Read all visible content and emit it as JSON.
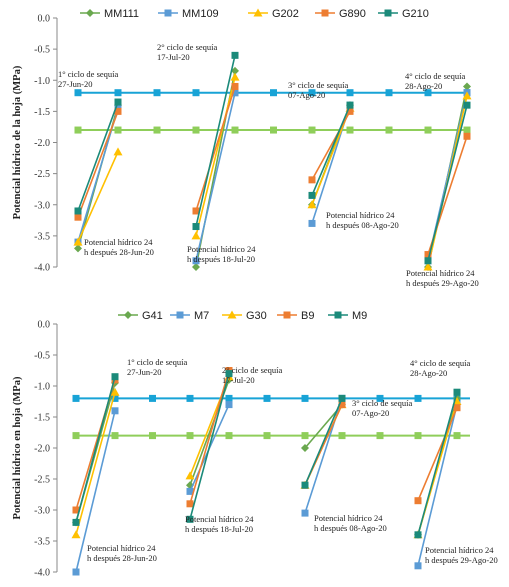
{
  "chart_data": [
    {
      "type": "line",
      "ylabel": "Potencial hídrico de la hoja (MPa)",
      "ylim": [
        -4.0,
        0.0
      ],
      "yticks": [
        "0.0",
        "-0.5",
        "-1.0",
        "-1.5",
        "-2.0",
        "-2.5",
        "-3.0",
        "-3.5",
        "-4.0"
      ],
      "grid": false,
      "legend": "top",
      "series": [
        {
          "name": "MM111",
          "color": "#6aa84f",
          "marker": "diamond",
          "segments": [
            [
              -3.7,
              -1.4
            ],
            [
              -4.0,
              -0.85
            ],
            [
              -3.0,
              -1.4
            ],
            [
              -4.0,
              -1.1
            ]
          ]
        },
        {
          "name": "MM109",
          "color": "#5b9bd5",
          "marker": "square",
          "segments": [
            [
              -3.6,
              -1.45
            ],
            [
              -3.9,
              -1.2
            ],
            [
              -3.3,
              -1.4
            ],
            [
              -3.9,
              -1.2
            ]
          ]
        },
        {
          "name": "G202",
          "color": "#ffc000",
          "marker": "triangle",
          "segments": [
            [
              -3.6,
              -2.15
            ],
            [
              -3.5,
              -0.95
            ],
            [
              -3.0,
              -1.45
            ],
            [
              -4.0,
              -1.25
            ]
          ]
        },
        {
          "name": "G890",
          "color": "#ed7d31",
          "marker": "square",
          "segments": [
            [
              -3.2,
              -1.5
            ],
            [
              -3.1,
              -1.1
            ],
            [
              -2.6,
              -1.5
            ],
            [
              -3.8,
              -1.9
            ]
          ]
        },
        {
          "name": "G210",
          "color": "#1b8a7a",
          "marker": "square",
          "segments": [
            [
              -3.1,
              -1.35
            ],
            [
              -3.35,
              -0.6
            ],
            [
              -2.85,
              -1.4
            ],
            [
              -3.9,
              -1.4
            ]
          ]
        }
      ],
      "reference_lines": [
        {
          "value": -1.2,
          "color": "#18a3d6"
        },
        {
          "value": -1.8,
          "color": "#8fce5a"
        }
      ],
      "annotations": {
        "cycles": [
          "1° ciclo de sequía\n27-Jun-20",
          "2° ciclo de sequía\n17-Jul-20",
          "3° ciclo de sequía\n07-Ago-20",
          "4° ciclo de sequía\n28-Ago-20"
        ],
        "after": [
          "Potencial hídrico 24\nh después  28-Jun-20",
          "Potencial hídrico 24\nh después 18-Jul-20",
          "Potencial hídrico 24\nh después 08-Ago-20",
          "Potencial hídrico 24\nh después 29-Ago-20"
        ]
      }
    },
    {
      "type": "line",
      "ylabel": "Potencial hídrico en hoja (MPa)",
      "ylim": [
        -4.0,
        0.0
      ],
      "yticks": [
        "0.0",
        "-0.5",
        "-1.0",
        "-1.5",
        "-2.0",
        "-2.5",
        "-3.0",
        "-3.5",
        "-4.0"
      ],
      "grid": false,
      "legend": "top",
      "series": [
        {
          "name": "G41",
          "color": "#6aa84f",
          "marker": "diamond",
          "segments": [
            [
              -3.2,
              -0.95
            ],
            [
              -2.6,
              -0.9
            ],
            [
              -2.0,
              -1.3
            ],
            [
              -3.4,
              -1.2
            ]
          ]
        },
        {
          "name": "M7",
          "color": "#5b9bd5",
          "marker": "square",
          "segments": [
            [
              -4.0,
              -1.4
            ],
            [
              -2.7,
              -1.3
            ],
            [
              -3.05,
              -1.2
            ],
            [
              -3.9,
              -1.3
            ]
          ]
        },
        {
          "name": "G30",
          "color": "#ffc000",
          "marker": "triangle",
          "segments": [
            [
              -3.4,
              -1.1
            ],
            [
              -2.45,
              -0.85
            ],
            [
              -2.6,
              -1.3
            ],
            [
              -3.4,
              -1.25
            ]
          ]
        },
        {
          "name": "B9",
          "color": "#ed7d31",
          "marker": "square",
          "segments": [
            [
              -3.0,
              -0.9
            ],
            [
              -2.9,
              -0.75
            ],
            [
              -2.6,
              -1.3
            ],
            [
              -2.85,
              -1.35
            ]
          ]
        },
        {
          "name": "M9",
          "color": "#1b8a7a",
          "marker": "square",
          "segments": [
            [
              -3.2,
              -0.85
            ],
            [
              -3.15,
              -0.8
            ],
            [
              -2.6,
              -1.2
            ],
            [
              -3.4,
              -1.1
            ]
          ]
        }
      ],
      "reference_lines": [
        {
          "value": -1.2,
          "color": "#18a3d6"
        },
        {
          "value": -1.8,
          "color": "#8fce5a"
        }
      ],
      "annotations": {
        "cycles": [
          "1° ciclo de sequía\n27-Jun-20",
          "2° ciclo de sequía\n17-Jul-20",
          "3° ciclo de sequía\n07-Ago-20",
          "4° ciclo de sequía\n28-Ago-20"
        ],
        "after": [
          "Potencial hídrico 24\nh después  28-Jun-20",
          "Potencial hídrico 24\nh después  18-Jul-20",
          "Potencial hídrico 24\nh después 08-Ago-20",
          "Potencial hídrico 24\nh después 29-Ago-20"
        ]
      }
    }
  ]
}
